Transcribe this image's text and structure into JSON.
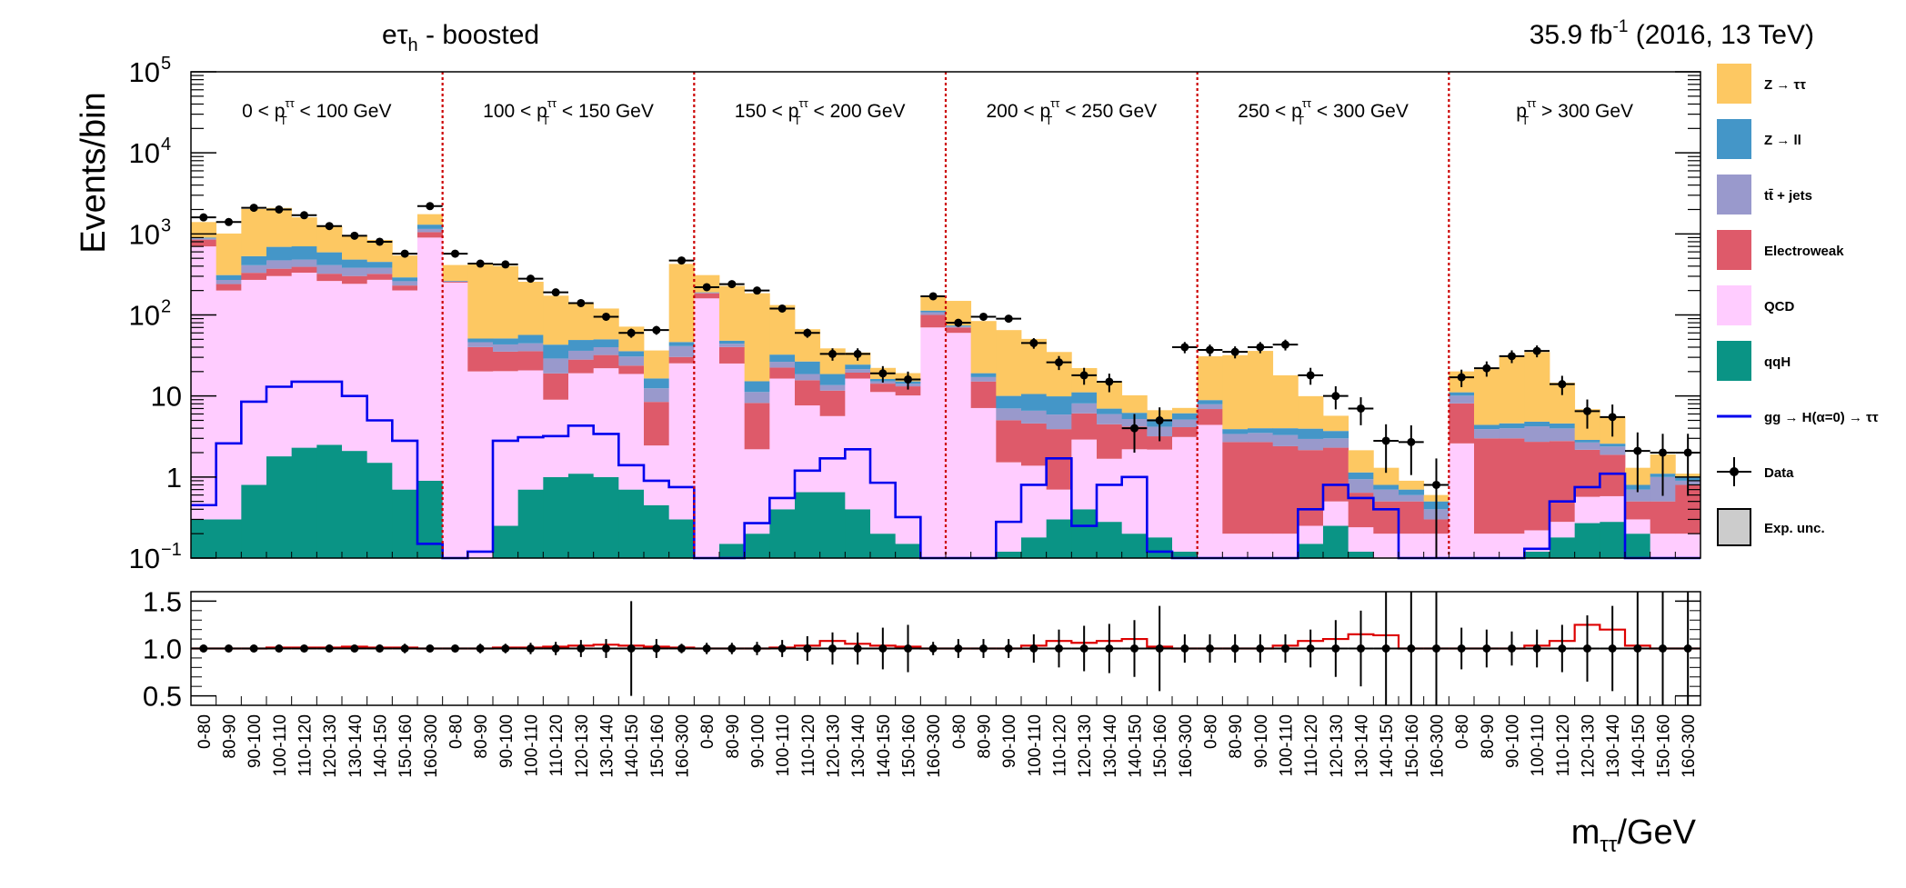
{
  "header": {
    "channel_main": "eτ",
    "channel_sub": "h",
    "channel_rest": " - boosted",
    "lumi_value": "35.9 fb",
    "lumi_exp": "-1",
    "lumi_rest": " (2016, 13 TeV)"
  },
  "axes": {
    "top_ylabel": "Events/bin",
    "xlabel_main": "m",
    "xlabel_sub": "ττ",
    "xlabel_rest": "/GeV"
  },
  "top_yticks": [
    {
      "value": 0.1,
      "label": "10",
      "exp": "−1"
    },
    {
      "value": 1,
      "label": "1",
      "exp": ""
    },
    {
      "value": 10,
      "label": "10",
      "exp": ""
    },
    {
      "value": 100,
      "label": "10",
      "exp": "2"
    },
    {
      "value": 1000,
      "label": "10",
      "exp": "3"
    },
    {
      "value": 10000,
      "label": "10",
      "exp": "4"
    },
    {
      "value": 100000,
      "label": "10",
      "exp": "5"
    }
  ],
  "ratio_yticks": [
    {
      "value": 0.5,
      "label": "0.5"
    },
    {
      "value": 1.0,
      "label": "1.0"
    },
    {
      "value": 1.5,
      "label": "1.5"
    }
  ],
  "regions": [
    {
      "pre": "0 < p",
      "post": " < 100 GeV"
    },
    {
      "pre": "100 < p",
      "post": " < 150 GeV"
    },
    {
      "pre": "150 < p",
      "post": " < 200 GeV"
    },
    {
      "pre": "200 < p",
      "post": " < 250 GeV"
    },
    {
      "pre": "250 < p",
      "post": " < 300 GeV"
    },
    {
      "pre": "p",
      "post": " > 300 GeV"
    }
  ],
  "region_pt_sup": "ττ",
  "region_pt_sub": "T",
  "legend": [
    {
      "label": "Z → ττ",
      "color": "#fdc862",
      "kind": "fill"
    },
    {
      "label": "Z → ll",
      "color": "#4496c8",
      "kind": "fill"
    },
    {
      "label": "tt̄ + jets",
      "color": "#9999cc",
      "kind": "fill"
    },
    {
      "label": "Electroweak",
      "color": "#de5a6a",
      "kind": "fill"
    },
    {
      "label": "QCD",
      "color": "#ffccff",
      "kind": "fill"
    },
    {
      "label": "qqH",
      "color": "#0a9485",
      "kind": "fill"
    },
    {
      "label": "gg → H(α=0) → ττ",
      "color": "#0000ee",
      "kind": "line"
    },
    {
      "label": "Data",
      "color": "#000000",
      "kind": "marker"
    },
    {
      "label": "Exp. unc.",
      "color": "#cccccc",
      "kind": "box"
    }
  ],
  "chart_data": [
    {
      "type": "area",
      "stacked": true,
      "yscale": "log",
      "ylim": [
        0.1,
        100000
      ],
      "ylabel": "Events/bin",
      "bin_labels": [
        "0-80",
        "80-90",
        "90-100",
        "100-110",
        "110-120",
        "120-130",
        "130-140",
        "140-150",
        "150-160",
        "160-300"
      ],
      "series_order": [
        "qqH",
        "QCD",
        "Electroweak",
        "tt̄ + jets",
        "Z → ll",
        "Z → ττ"
      ],
      "regions": [
        {
          "qqH": [
            0.3,
            0.3,
            0.8,
            1.8,
            2.3,
            2.5,
            2.1,
            1.5,
            0.7,
            0.9
          ],
          "QCD": [
            700,
            200,
            270,
            300,
            330,
            260,
            240,
            270,
            200,
            900
          ],
          "Electroweak": [
            150,
            40,
            60,
            70,
            60,
            60,
            60,
            50,
            30,
            150
          ],
          "tt̄ + jets": [
            30,
            30,
            80,
            100,
            90,
            90,
            80,
            60,
            30,
            100
          ],
          "Z → ll": [
            20,
            40,
            120,
            220,
            220,
            180,
            100,
            70,
            30,
            150
          ],
          "Z → ττ": [
            500,
            700,
            1500,
            1400,
            900,
            650,
            480,
            390,
            250,
            450
          ],
          "ggH": [
            0.45,
            2.6,
            8.5,
            13,
            15,
            15,
            10,
            5,
            2.8,
            0.15
          ],
          "data": [
            1600,
            1400,
            2100,
            2000,
            1700,
            1250,
            950,
            800,
            570,
            2200
          ]
        },
        {
          "qqH": [
            0.1,
            0.1,
            0.25,
            0.7,
            1.0,
            1.1,
            1.0,
            0.7,
            0.45,
            0.3
          ],
          "QCD": [
            250,
            20,
            20,
            20,
            8,
            18,
            21,
            18,
            2,
            25
          ],
          "Electroweak": [
            6,
            20,
            15,
            15,
            10,
            9,
            10,
            5,
            6,
            5
          ],
          "tt̄ + jets": [
            4,
            6,
            8,
            9,
            10,
            8,
            8,
            7,
            4,
            11
          ],
          "Z → ll": [
            3,
            5,
            8,
            12,
            14,
            13,
            10,
            5,
            4,
            5
          ],
          "Z → ττ": [
            150,
            380,
            350,
            200,
            130,
            90,
            70,
            36,
            20,
            380
          ],
          "ggH": [
            0.1,
            0.12,
            2.8,
            3.1,
            3.2,
            4.3,
            3.4,
            1.4,
            0.9,
            0.75
          ],
          "data": [
            570,
            430,
            420,
            280,
            190,
            140,
            95,
            60,
            65,
            470
          ]
        },
        {
          "qqH": [
            0.1,
            0.15,
            0.2,
            0.4,
            0.65,
            0.65,
            0.4,
            0.2,
            0.15,
            0.1
          ],
          "QCD": [
            160,
            25,
            2,
            16,
            7,
            5,
            16,
            11,
            10,
            70
          ],
          "Electroweak": [
            25,
            15,
            6,
            6,
            8,
            6,
            3,
            3,
            3,
            30
          ],
          "tt̄ + jets": [
            3,
            4,
            3,
            4,
            3,
            2,
            2,
            1,
            1,
            8
          ],
          "Z → ll": [
            2,
            4,
            4,
            6,
            8,
            5,
            3,
            1,
            1,
            5
          ],
          "Z → ττ": [
            120,
            180,
            170,
            100,
            40,
            20,
            10,
            6,
            4,
            60
          ],
          "ggH": [
            0.1,
            0.1,
            0.27,
            0.55,
            1.2,
            1.7,
            2.2,
            0.85,
            0.32,
            0.1
          ],
          "data": [
            220,
            240,
            200,
            120,
            60,
            33,
            33,
            19,
            16,
            170
          ]
        },
        {
          "qqH": [
            0.1,
            0.1,
            0.12,
            0.18,
            0.3,
            0.4,
            0.28,
            0.2,
            0.18,
            0.12
          ],
          "QCD": [
            60,
            7,
            1.4,
            1.2,
            0.4,
            2.5,
            1.4,
            2,
            2,
            3
          ],
          "Electroweak": [
            10,
            8,
            3.5,
            3.2,
            3.2,
            3.2,
            2.8,
            2,
            1,
            1
          ],
          "tt̄ + jets": [
            2,
            2,
            2,
            2,
            2,
            2,
            1.5,
            1,
            1,
            1
          ],
          "Z → ll": [
            2,
            2,
            3,
            4,
            4,
            3,
            1,
            1,
            1,
            1
          ],
          "Z → ττ": [
            75,
            65,
            55,
            40,
            25,
            11,
            8,
            4,
            1.5,
            1
          ],
          "ggH": [
            0.1,
            0.1,
            0.28,
            0.8,
            1.7,
            0.25,
            0.8,
            1.0,
            0.12,
            0.1
          ],
          "data": [
            80,
            95,
            90,
            45,
            26,
            18,
            15,
            4,
            5,
            40
          ]
        },
        {
          "qqH": [
            0.1,
            0.1,
            0.1,
            0.1,
            0.15,
            0.25,
            0.12,
            0.1,
            0.1,
            0.1
          ],
          "QCD": [
            4.3,
            0.1,
            0.1,
            0.1,
            0.1,
            0.25,
            0.12,
            0.1,
            0.1,
            0.1
          ],
          "Electroweak": [
            2.5,
            2.5,
            2.5,
            2.2,
            1.9,
            1.8,
            0.4,
            0.3,
            0.3,
            0.1
          ],
          "tt̄ + jets": [
            1,
            0.7,
            0.8,
            0.9,
            0.8,
            0.7,
            0.3,
            0.2,
            0.1,
            0.1
          ],
          "Z → ll": [
            1,
            0.5,
            0.5,
            0.7,
            1,
            0.7,
            0.2,
            0.1,
            0.1,
            0.1
          ],
          "Z → ττ": [
            22,
            28,
            32,
            14,
            6,
            2,
            1,
            0.5,
            0.2,
            0.1
          ],
          "ggH": [
            0.1,
            0.1,
            0.1,
            0.1,
            0.4,
            0.8,
            0.55,
            0.4,
            0.1,
            0.1
          ],
          "data": [
            37,
            35,
            40,
            43,
            18,
            10,
            7,
            2.8,
            2.7,
            0.8
          ]
        },
        {
          "qqH": [
            0.1,
            0.1,
            0.1,
            0.12,
            0.18,
            0.27,
            0.28,
            0.2,
            0.1,
            0.1
          ],
          "QCD": [
            2.5,
            0.1,
            0.1,
            0.1,
            0.1,
            0.3,
            0.3,
            0.1,
            0.1,
            0.1
          ],
          "Electroweak": [
            5.5,
            2.8,
            2.8,
            2.5,
            2.5,
            1.6,
            1.3,
            0.2,
            0.3,
            0.6
          ],
          "tt̄ + jets": [
            2,
            0.9,
            1,
            1.5,
            1.2,
            0.5,
            0.5,
            0.2,
            0.5,
            0.1
          ],
          "Z → ll": [
            1,
            0.5,
            0.6,
            0.6,
            0.6,
            0.2,
            0.2,
            0.1,
            0.1,
            0.1
          ],
          "Z → ττ": [
            9,
            17,
            26,
            30,
            10,
            4,
            3,
            0.5,
            0.8,
            0.1
          ],
          "ggH": [
            0.1,
            0.1,
            0.1,
            0.13,
            0.5,
            0.75,
            1.1,
            0.1,
            0.1,
            0.1
          ],
          "data": [
            17,
            22,
            31,
            36,
            14,
            6.5,
            5.5,
            2.1,
            2,
            2
          ]
        }
      ]
    },
    {
      "type": "line",
      "ylabel": "",
      "ylim": [
        0.4,
        1.6
      ],
      "name": "ratio",
      "values": [
        1.0,
        1.0,
        1.0,
        1.01,
        1.01,
        1.01,
        1.02,
        1.01,
        1.01,
        1.0,
        1.0,
        1.0,
        1.01,
        1.01,
        1.02,
        1.03,
        1.04,
        1.03,
        1.02,
        1.01,
        1.0,
        1.0,
        1.0,
        1.01,
        1.03,
        1.08,
        1.05,
        1.03,
        1.02,
        1.0,
        1.0,
        1.0,
        1.0,
        1.03,
        1.08,
        1.06,
        1.08,
        1.1,
        1.02,
        1.0,
        1.0,
        1.0,
        1.0,
        1.03,
        1.08,
        1.1,
        1.15,
        1.14,
        1.0,
        1.0,
        1.0,
        1.0,
        1.0,
        1.03,
        1.08,
        1.25,
        1.2,
        1.03,
        1.0,
        1.0
      ],
      "errors": [
        0.02,
        0.02,
        0.02,
        0.02,
        0.02,
        0.03,
        0.03,
        0.04,
        0.05,
        0.02,
        0.04,
        0.05,
        0.05,
        0.06,
        0.07,
        0.09,
        0.1,
        0.5,
        0.1,
        0.05,
        0.06,
        0.06,
        0.07,
        0.09,
        0.13,
        0.17,
        0.17,
        0.22,
        0.25,
        0.07,
        0.1,
        0.1,
        0.1,
        0.15,
        0.2,
        0.24,
        0.26,
        0.3,
        0.45,
        0.15,
        0.15,
        0.15,
        0.15,
        0.15,
        0.2,
        0.3,
        0.4,
        0.7,
        0.6,
        1.1,
        0.22,
        0.2,
        0.18,
        0.2,
        0.25,
        0.35,
        0.45,
        0.7,
        0.7,
        0.7
      ]
    }
  ]
}
